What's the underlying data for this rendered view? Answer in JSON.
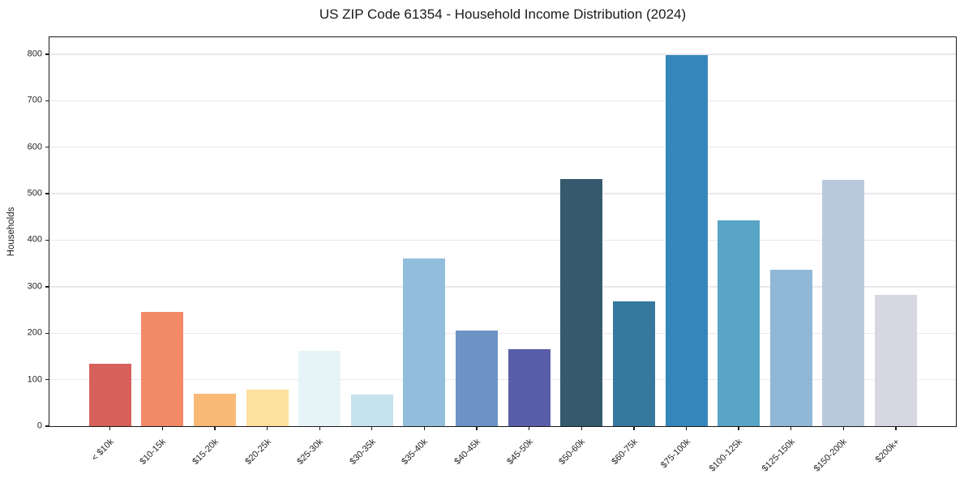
{
  "chart_data": {
    "type": "bar",
    "title": "US ZIP Code 61354 - Household Income Distribution (2024)",
    "xlabel": "",
    "ylabel": "Households",
    "categories": [
      "< $10k",
      "$10-15k",
      "$15-20k",
      "$20-25k",
      "$25-30k",
      "$30-35k",
      "$35-40k",
      "$40-45k",
      "$45-50k",
      "$50-60k",
      "$60-75k",
      "$75-100k",
      "$100-125k",
      "$125-150k",
      "$150-200k",
      "$200k+"
    ],
    "values": [
      135,
      245,
      70,
      78,
      162,
      68,
      360,
      205,
      165,
      531,
      268,
      798,
      443,
      336,
      529,
      282
    ],
    "bar_colors": [
      "#d8605a",
      "#f28a68",
      "#f9ba78",
      "#fce09c",
      "#e6f3f7",
      "#c6e2ee",
      "#92bedb",
      "#6d93c5",
      "#5a5ea9",
      "#355a6d",
      "#36789e",
      "#3587bb",
      "#59a5c5",
      "#90b7d6",
      "#b9c9dd",
      "#d6d7e3"
    ],
    "yticks": [
      0,
      100,
      200,
      300,
      400,
      500,
      600,
      700,
      800
    ],
    "ylim": [
      0,
      840
    ],
    "grid": "horizontal-light",
    "gridline_color": "#e8e8ee",
    "legend": "none",
    "x_tick_rotation_deg": 45
  }
}
